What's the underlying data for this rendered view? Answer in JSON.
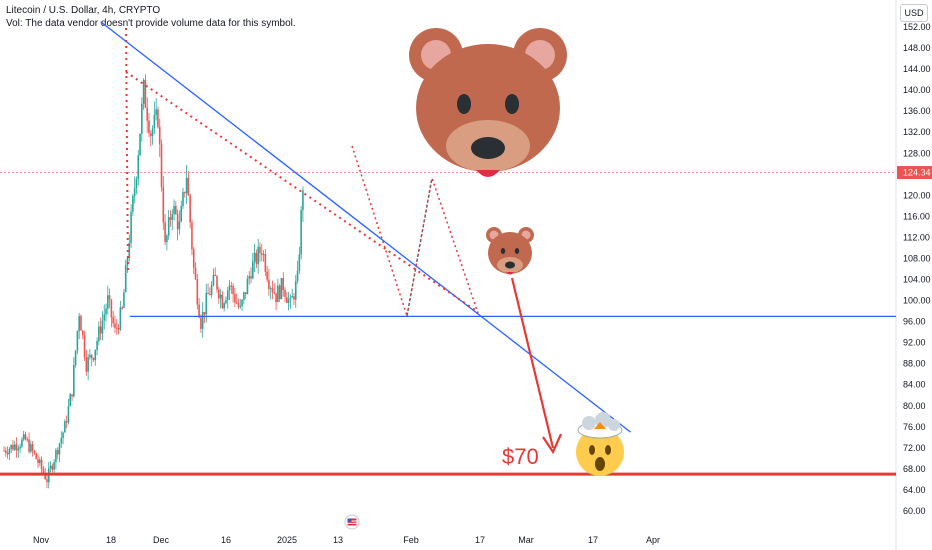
{
  "header": {
    "title": "Litecoin / U.S. Dollar, 4h, CRYPTO",
    "volume_note": "Vol: The data vendor doesn't provide volume data for this symbol."
  },
  "currency_button": "USD",
  "colors": {
    "up": "#26a69a",
    "down": "#ef5350",
    "trendline": "#2962ff",
    "support": "#e53935",
    "projection": "#e53935",
    "projection_green": "#26a69a",
    "price_tag": "#ef5350"
  },
  "icons": [
    "bear-face-large-icon",
    "bear-face-small-icon",
    "exploding-head-icon",
    "us-flag-event-icon"
  ],
  "chart_data": {
    "type": "candlestick",
    "symbol": "Litecoin / U.S. Dollar",
    "interval": "4h",
    "y_axis": {
      "unit": "USD",
      "ylim": [
        58,
        154
      ],
      "ticks": [
        "152.00",
        "148.00",
        "144.00",
        "140.00",
        "136.00",
        "132.00",
        "128.00",
        "124.00",
        "120.00",
        "116.00",
        "112.00",
        "108.00",
        "104.00",
        "100.00",
        "96.00",
        "92.00",
        "88.00",
        "84.00",
        "80.00",
        "76.00",
        "72.00",
        "68.00",
        "64.00",
        "60.00"
      ]
    },
    "x_axis": {
      "ticks": [
        "Nov",
        "18",
        "Dec",
        "16",
        "2025",
        "13",
        "Feb",
        "17",
        "Mar",
        "17",
        "Apr"
      ]
    },
    "last_price": "124.34",
    "target_label": "$70",
    "price_path": [
      {
        "date": "Oct 25",
        "close": 71.5
      },
      {
        "date": "Oct 28",
        "close": 72.5
      },
      {
        "date": "Oct 31",
        "close": 73.5
      },
      {
        "date": "Nov 3",
        "close": 70
      },
      {
        "date": "Nov 6",
        "close": 66
      },
      {
        "date": "Nov 9",
        "close": 72
      },
      {
        "date": "Nov 11",
        "close": 76
      },
      {
        "date": "Nov 13",
        "close": 83
      },
      {
        "date": "Nov 15",
        "close": 98
      },
      {
        "date": "Nov 17",
        "close": 88
      },
      {
        "date": "Nov 19",
        "close": 90
      },
      {
        "date": "Nov 21",
        "close": 95
      },
      {
        "date": "Nov 23",
        "close": 100
      },
      {
        "date": "Nov 25",
        "close": 94
      },
      {
        "date": "Nov 27",
        "close": 98
      },
      {
        "date": "Nov 29",
        "close": 112
      },
      {
        "date": "Dec 1",
        "close": 125
      },
      {
        "date": "Dec 3",
        "close": 140
      },
      {
        "date": "Dec 5",
        "close": 132
      },
      {
        "date": "Dec 7",
        "close": 135
      },
      {
        "date": "Dec 9",
        "close": 110
      },
      {
        "date": "Dec 11",
        "close": 118
      },
      {
        "date": "Dec 13",
        "close": 114
      },
      {
        "date": "Dec 15",
        "close": 124
      },
      {
        "date": "Dec 17",
        "close": 106
      },
      {
        "date": "Dec 19",
        "close": 96
      },
      {
        "date": "Dec 21",
        "close": 101
      },
      {
        "date": "Dec 23",
        "close": 104
      },
      {
        "date": "Dec 25",
        "close": 100
      },
      {
        "date": "Dec 27",
        "close": 103
      },
      {
        "date": "Dec 30",
        "close": 98
      },
      {
        "date": "Jan 2",
        "close": 106
      },
      {
        "date": "Jan 5",
        "close": 110
      },
      {
        "date": "Jan 7",
        "close": 104
      },
      {
        "date": "Jan 9",
        "close": 101
      },
      {
        "date": "Jan 11",
        "close": 103
      },
      {
        "date": "Jan 13",
        "close": 99
      },
      {
        "date": "Jan 15",
        "close": 104
      },
      {
        "date": "Jan 16",
        "close": 116
      },
      {
        "date": "Jan 17",
        "close": 128
      }
    ],
    "annotations": {
      "descending_trendline": {
        "from": {
          "date": "Nov 21",
          "price": 153
        },
        "to": {
          "date": "Apr 18",
          "price": 75
        }
      },
      "horizontal_support": {
        "price": 97
      },
      "target_support_line": {
        "price": 67
      }
    }
  }
}
